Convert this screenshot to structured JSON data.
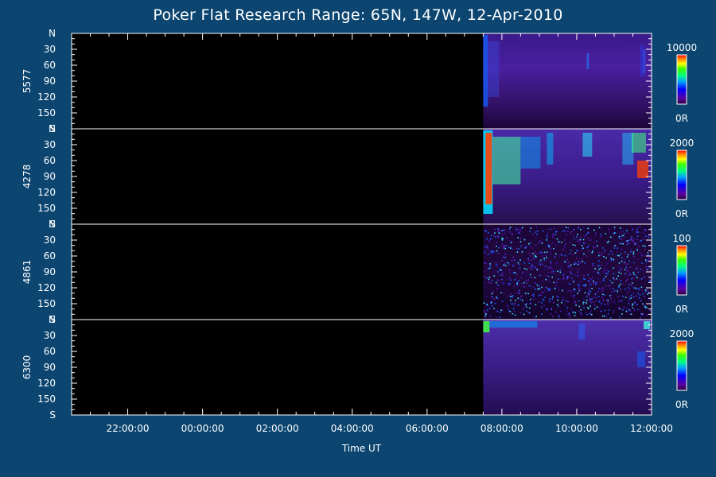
{
  "title": "Poker Flat Research Range: 65N, 147W, 12-Apr-2010",
  "chart_data": {
    "type": "heatmap",
    "title": "Poker Flat Research Range: 65N, 147W, 12-Apr-2010",
    "xlabel": "Time UT",
    "x_ticks": [
      "22:00:00",
      "00:00:00",
      "02:00:00",
      "04:00:00",
      "06:00:00",
      "08:00:00",
      "10:00:00",
      "12:00:00"
    ],
    "xlim": [
      "20:30:00",
      "12:00:00"
    ],
    "data_start": "07:30:00",
    "y_ticks": [
      "N",
      "30",
      "60",
      "90",
      "120",
      "150",
      "S"
    ],
    "ylim": [
      0,
      180
    ],
    "colormap": "rainbow (purple-blue-cyan-green-yellow-orange-red)",
    "panels": [
      {
        "ylabel": "5577",
        "colorbar_max": "10000",
        "colorbar_min": "0R"
      },
      {
        "ylabel": "4278",
        "colorbar_max": "2000",
        "colorbar_min": "0R"
      },
      {
        "ylabel": "4861",
        "colorbar_max": "100",
        "colorbar_min": "0R"
      },
      {
        "ylabel": "6300",
        "colorbar_max": "2000",
        "colorbar_min": "0R"
      }
    ]
  }
}
